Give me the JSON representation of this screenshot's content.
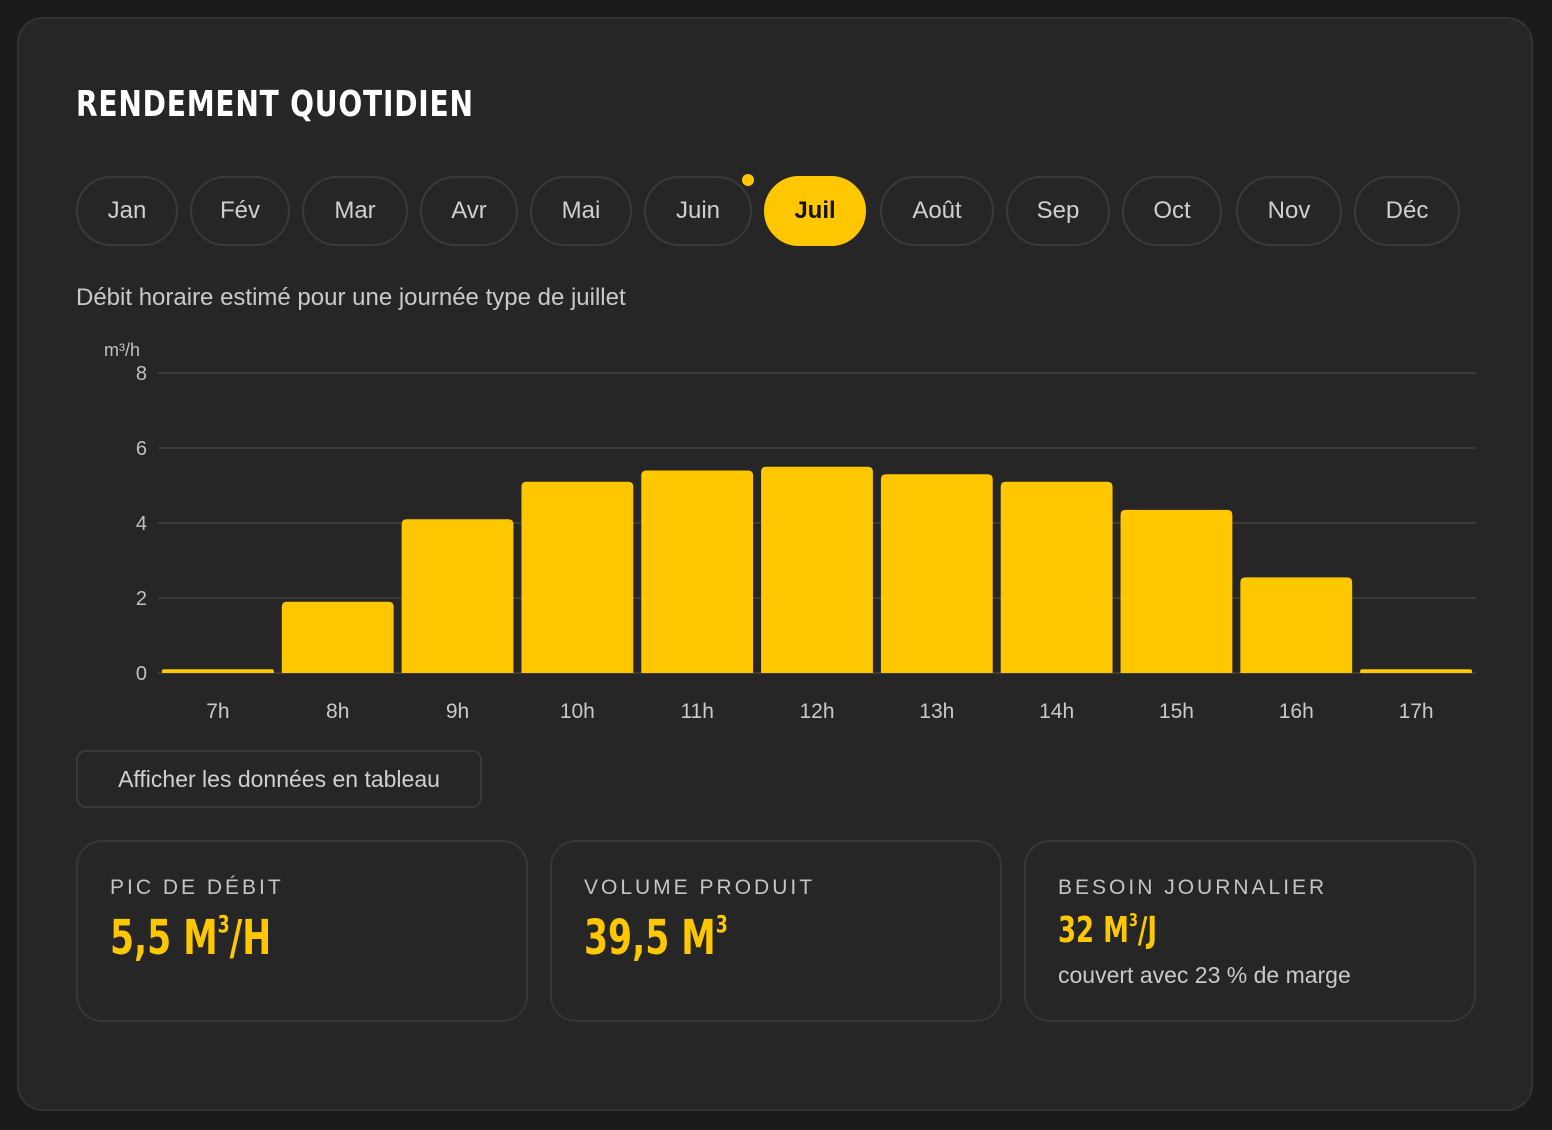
{
  "title": "RENDEMENT QUOTIDIEN",
  "months": [
    {
      "label": "Jan"
    },
    {
      "label": "Fév"
    },
    {
      "label": "Mar"
    },
    {
      "label": "Avr"
    },
    {
      "label": "Mai"
    },
    {
      "label": "Juin",
      "marked": true
    },
    {
      "label": "Juil",
      "active": true
    },
    {
      "label": "Août"
    },
    {
      "label": "Sep"
    },
    {
      "label": "Oct"
    },
    {
      "label": "Nov"
    },
    {
      "label": "Déc"
    }
  ],
  "subtitle": "Débit horaire estimé pour une journée type de juillet",
  "chart_data": {
    "type": "bar",
    "ylabel": "m³/h",
    "categories": [
      "7h",
      "8h",
      "9h",
      "10h",
      "11h",
      "12h",
      "13h",
      "14h",
      "15h",
      "16h",
      "17h"
    ],
    "values": [
      0.1,
      1.9,
      4.1,
      5.1,
      5.4,
      5.5,
      5.3,
      5.1,
      4.35,
      2.55,
      0.1
    ],
    "ylim": [
      0,
      8
    ],
    "yticks": [
      0,
      2,
      4,
      6,
      8
    ],
    "grid": true,
    "bar_color": "#ffc700"
  },
  "table_button_label": "Afficher les données en tableau",
  "stats": [
    {
      "label": "PIC DE DÉBIT",
      "value": "5,5 M",
      "sup": "3",
      "suffix": "/H"
    },
    {
      "label": "VOLUME PRODUIT",
      "value": "39,5 M",
      "sup": "3",
      "suffix": ""
    },
    {
      "label": "BESOIN JOURNALIER",
      "value": "32 M",
      "sup": "3",
      "suffix": "/J",
      "note": "couvert avec 23 % de marge"
    }
  ],
  "colors": {
    "accent": "#ffc700",
    "background": "#262626"
  }
}
